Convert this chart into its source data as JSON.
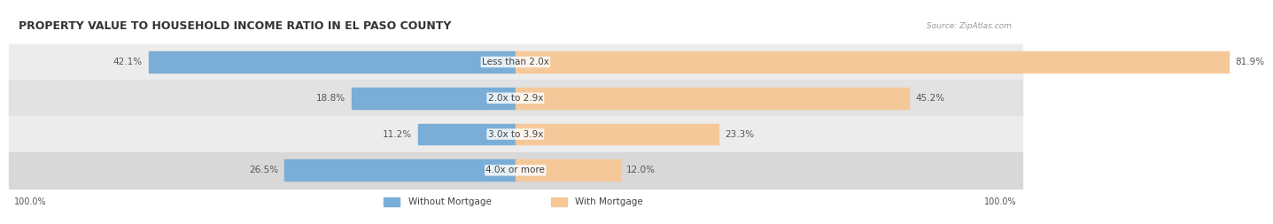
{
  "title": "PROPERTY VALUE TO HOUSEHOLD INCOME RATIO IN EL PASO COUNTY",
  "source": "Source: ZipAtlas.com",
  "categories": [
    "Less than 2.0x",
    "2.0x to 2.9x",
    "3.0x to 3.9x",
    "4.0x or more"
  ],
  "without_mortgage": [
    42.1,
    18.8,
    11.2,
    26.5
  ],
  "with_mortgage": [
    81.9,
    45.2,
    23.3,
    12.0
  ],
  "blue_color": "#7aaed6",
  "orange_color": "#f5c89a",
  "row_bg_colors": [
    "#ececec",
    "#e2e2e2",
    "#ececec",
    "#d8d8d8"
  ],
  "title_fontsize": 9,
  "label_fontsize": 7.5,
  "axis_label_fontsize": 7,
  "legend_fontsize": 7.5,
  "left_axis_label": "100.0%",
  "right_axis_label": "100.0%",
  "max_value": 100.0
}
